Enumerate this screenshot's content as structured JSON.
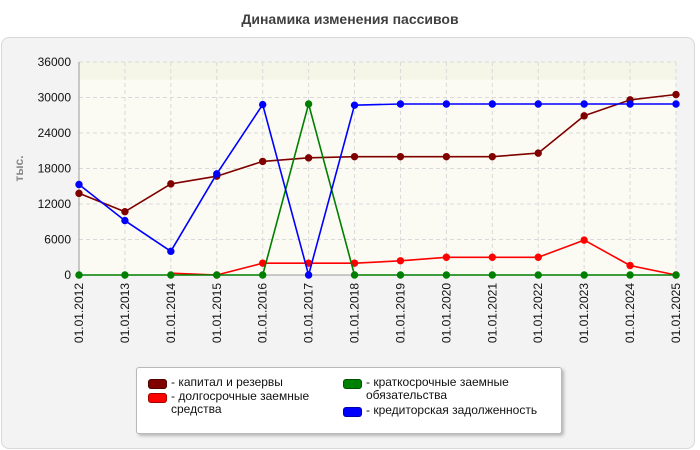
{
  "chart_data": {
    "type": "line",
    "title": "Динамика изменения пассивов",
    "ylabel": "тыс.",
    "xlabel": "",
    "ylim": [
      0,
      36000
    ],
    "yticks": [
      0,
      6000,
      12000,
      18000,
      24000,
      30000,
      36000
    ],
    "grid": true,
    "legend_position": "bottom",
    "categories": [
      "01.01.2012",
      "01.01.2013",
      "01.01.2014",
      "01.01.2015",
      "01.01.2016",
      "01.01.2017",
      "01.01.2018",
      "01.01.2019",
      "01.01.2020",
      "01.01.2021",
      "01.01.2022",
      "01.01.2023",
      "01.01.2024",
      "01.01.2025"
    ],
    "series": [
      {
        "name": "- капитал и резервы",
        "color": "#800000",
        "values": [
          13800,
          10700,
          15400,
          16700,
          19200,
          19800,
          20000,
          20000,
          20000,
          20000,
          20600,
          26900,
          29600,
          30500
        ],
        "markers": [
          true,
          true,
          true,
          true,
          true,
          true,
          true,
          true,
          true,
          true,
          true,
          true,
          true,
          true
        ]
      },
      {
        "name": "- долгосрочные заемные средства",
        "color": "#ff0000",
        "values": [
          null,
          null,
          300,
          0,
          2000,
          2000,
          2000,
          2400,
          3000,
          3000,
          3000,
          5900,
          1600,
          0
        ],
        "markers": [
          false,
          false,
          false,
          true,
          true,
          true,
          true,
          true,
          true,
          true,
          true,
          true,
          true,
          true
        ]
      },
      {
        "name": "- краткосрочные заемные обязательства",
        "color": "#008000",
        "values": [
          0,
          0,
          0,
          0,
          0,
          28900,
          0,
          0,
          0,
          0,
          0,
          0,
          0,
          0
        ],
        "markers": [
          true,
          true,
          true,
          true,
          true,
          true,
          true,
          true,
          true,
          true,
          true,
          true,
          true,
          true
        ]
      },
      {
        "name": "- кредиторская задолженность",
        "color": "#0000ff",
        "values": [
          15300,
          9200,
          4000,
          17100,
          28800,
          0,
          28700,
          28900,
          28900,
          28900,
          28900,
          28900,
          28900,
          28900
        ],
        "markers": [
          true,
          true,
          true,
          true,
          true,
          true,
          true,
          true,
          true,
          true,
          true,
          true,
          true,
          true
        ]
      }
    ]
  },
  "legend": {
    "items": [
      {
        "label": "- капитал и резервы",
        "color": "#800000"
      },
      {
        "label": "- долгосрочные заемные средства",
        "color": "#ff0000"
      },
      {
        "label": "- краткосрочные заемные обязательства",
        "color": "#008000"
      },
      {
        "label": "- кредиторская задолженность",
        "color": "#0000ff"
      }
    ]
  }
}
